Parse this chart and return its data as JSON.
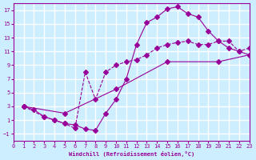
{
  "bg_color": "#cceeff",
  "grid_color": "#ffffff",
  "line_color": "#990099",
  "xlabel": "Windchill (Refroidissement éolien,°C)",
  "ylabel": "",
  "xlim": [
    0,
    23
  ],
  "ylim": [
    -2,
    18
  ],
  "xticks": [
    0,
    1,
    2,
    3,
    4,
    5,
    6,
    7,
    8,
    9,
    10,
    11,
    12,
    13,
    14,
    15,
    16,
    17,
    18,
    19,
    20,
    21,
    22,
    23
  ],
  "yticks": [
    -1,
    1,
    3,
    5,
    7,
    9,
    11,
    13,
    15,
    17
  ],
  "curve1_x": [
    1,
    2,
    3,
    4,
    5,
    6,
    7,
    8,
    9,
    10,
    11,
    12,
    13,
    14,
    15,
    16,
    17,
    18,
    19,
    20,
    21,
    22,
    23
  ],
  "curve1_y": [
    3,
    2.5,
    1.5,
    1,
    0.5,
    0.3,
    -0.3,
    -0.5,
    2,
    4,
    7,
    12,
    15.2,
    16,
    17.2,
    17.5,
    16.5,
    16,
    14,
    12.5,
    11.5,
    11,
    10.5
  ],
  "curve2_x": [
    1,
    3,
    4,
    5,
    6,
    7,
    8,
    9,
    10,
    11,
    12,
    13,
    14,
    15,
    16,
    17,
    18,
    19,
    20,
    21,
    22,
    23
  ],
  "curve2_y": [
    3,
    1.5,
    1,
    0.5,
    -0.2,
    8,
    4,
    8,
    9,
    9.5,
    9.8,
    10.5,
    11.5,
    12,
    12.3,
    12.5,
    12.0,
    12.0,
    12.5,
    12.5,
    11,
    11.5
  ],
  "curve3_x": [
    1,
    5,
    10,
    15,
    20,
    23
  ],
  "curve3_y": [
    3,
    2,
    5.5,
    9.5,
    9.5,
    10.5
  ],
  "marker": "D",
  "markersize": 3
}
